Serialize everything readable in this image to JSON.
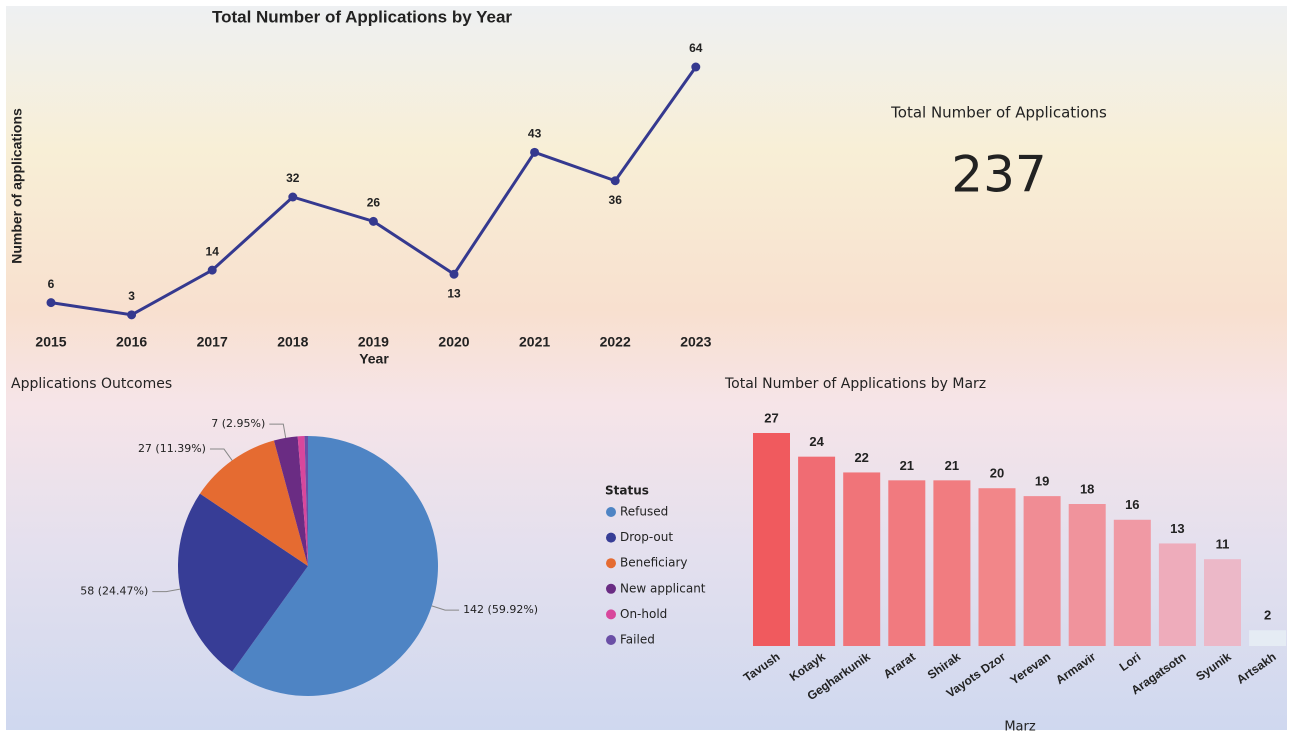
{
  "chart_data": [
    {
      "type": "line",
      "title": "Total Number of Applications by Year",
      "x_label": "Year",
      "y_label": "Number of applications",
      "color": "#35398f",
      "categories": [
        "2015",
        "2016",
        "2017",
        "2018",
        "2019",
        "2020",
        "2021",
        "2022",
        "2023"
      ],
      "values": [
        6,
        3,
        14,
        32,
        26,
        13,
        43,
        36,
        64
      ]
    },
    {
      "type": "card",
      "title": "Total Number of Applications",
      "value": 237
    },
    {
      "type": "pie",
      "title": "Applications Outcomes",
      "legend_title": "Status",
      "legend": "right",
      "categories": [
        "Refused",
        "Drop-out",
        "Beneficiary",
        "New applicant",
        "On-hold",
        "Failed"
      ],
      "values": [
        142,
        58,
        27,
        7,
        2,
        1
      ],
      "value_labels": [
        "142 (59.92%)",
        "58 (24.47%)",
        "27 (11.39%)",
        "7 (2.95%)",
        null,
        null
      ],
      "colors": [
        "#4e84c4",
        "#373d96",
        "#e56b31",
        "#6a2c83",
        "#d8479c",
        "#6a4fa6"
      ]
    },
    {
      "type": "bar",
      "title": "Total Number of Applications by Marz",
      "x_label": "Marz",
      "categories": [
        "Tavush",
        "Kotayk",
        "Gegharkunik",
        "Ararat",
        "Shirak",
        "Vayots Dzor",
        "Yerevan",
        "Armavir",
        "Lori",
        "Aragatsotn",
        "Syunik",
        "Artsakh"
      ],
      "values": [
        27,
        24,
        22,
        21,
        21,
        20,
        19,
        18,
        16,
        13,
        11,
        2
      ],
      "colors": [
        "#f05a5e",
        "#f06c73",
        "#f07479",
        "#f17a7f",
        "#f17c80",
        "#f28689",
        "#f08c94",
        "#f0939c",
        "#f099a4",
        "#eeacbb",
        "#ecb8c8",
        "#e5ecf4"
      ]
    }
  ]
}
